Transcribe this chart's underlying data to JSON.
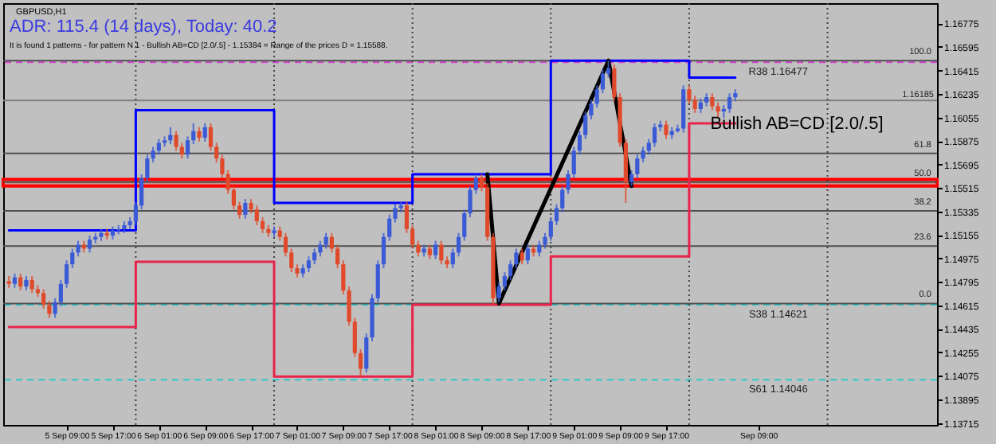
{
  "chart_data": {
    "type": "candlestick",
    "annotations": [
      "GBPUSD,H1",
      "ADR: 115.4 (14 days), Today: 40.2",
      "It is found 1 patterns - for pattern N 1 - Bullish AB=CD [2.0/.5] - 1.15384 = Range of the prices D = 1.15588.",
      "Bullish AB=CD [2.0/.5]",
      {
        "text": "100.0",
        "x": "--09-11T15:00",
        "y": 1.1649
      },
      {
        "text": "61.8",
        "x": "--09-11T15:00",
        "y": 1.1578
      },
      {
        "text": "50.0",
        "x": "--09-11T15:00",
        "y": 1.1556
      },
      {
        "text": "38.2",
        "x": "--09-11T15:00",
        "y": 1.1534
      },
      {
        "text": "23.6",
        "x": "--09-11T15:00",
        "y": 1.1507
      },
      {
        "text": "0.0",
        "x": "--09-11T15:00",
        "y": 1.1463
      }
    ],
    "x": [
      "--09-04T23:00",
      "--09-05T00:00",
      "--09-05T01:00",
      "--09-05T02:00",
      "--09-05T03:00",
      "--09-05T04:00",
      "--09-05T05:00",
      "--09-05T06:00",
      "--09-05T07:00",
      "--09-05T08:00",
      "--09-05T09:00",
      "--09-05T10:00",
      "--09-05T11:00",
      "--09-05T12:00",
      "--09-05T13:00",
      "--09-05T14:00",
      "--09-05T15:00",
      "--09-05T16:00",
      "--09-05T17:00",
      "--09-05T18:00",
      "--09-05T19:00",
      "--09-05T20:00",
      "--09-05T21:00",
      "--09-05T22:00",
      "--09-05T23:00",
      "--09-06T00:00",
      "--09-06T01:00",
      "--09-06T02:00",
      "--09-06T03:00",
      "--09-06T04:00",
      "--09-06T05:00",
      "--09-06T06:00",
      "--09-06T07:00",
      "--09-06T08:00",
      "--09-06T09:00",
      "--09-06T10:00",
      "--09-06T11:00",
      "--09-06T12:00",
      "--09-06T13:00",
      "--09-06T14:00",
      "--09-06T15:00",
      "--09-06T16:00",
      "--09-06T17:00",
      "--09-06T18:00",
      "--09-06T19:00",
      "--09-06T20:00",
      "--09-06T21:00",
      "--09-06T22:00",
      "--09-06T23:00",
      "--09-07T00:00",
      "--09-07T01:00",
      "--09-07T02:00",
      "--09-07T03:00",
      "--09-07T04:00",
      "--09-07T05:00",
      "--09-07T06:00",
      "--09-07T07:00",
      "--09-07T08:00",
      "--09-07T09:00",
      "--09-07T10:00",
      "--09-07T11:00",
      "--09-07T12:00",
      "--09-07T13:00",
      "--09-07T14:00",
      "--09-07T15:00",
      "--09-07T16:00",
      "--09-07T17:00",
      "--09-07T18:00",
      "--09-07T19:00",
      "--09-07T20:00",
      "--09-07T21:00",
      "--09-07T22:00",
      "--09-07T23:00",
      "--09-08T00:00",
      "--09-08T01:00",
      "--09-08T02:00",
      "--09-08T03:00",
      "--09-08T04:00",
      "--09-08T05:00",
      "--09-08T06:00",
      "--09-08T07:00",
      "--09-08T08:00",
      "--09-08T09:00",
      "--09-08T10:00",
      "--09-08T11:00",
      "--09-08T12:00",
      "--09-08T13:00",
      "--09-08T14:00",
      "--09-08T15:00",
      "--09-08T16:00",
      "--09-08T17:00",
      "--09-08T18:00",
      "--09-08T19:00",
      "--09-08T20:00",
      "--09-08T21:00",
      "--09-08T22:00",
      "--09-08T23:00",
      "--09-09T00:00",
      "--09-09T01:00",
      "--09-09T02:00",
      "--09-09T03:00",
      "--09-09T04:00",
      "--09-09T05:00",
      "--09-09T06:00",
      "--09-09T07:00",
      "--09-09T08:00",
      "--09-09T09:00",
      "--09-09T10:00",
      "--09-09T11:00",
      "--09-09T12:00",
      "--09-09T13:00",
      "--09-09T14:00",
      "--09-09T15:00",
      "--09-09T16:00",
      "--09-09T17:00",
      "--09-09T18:00",
      "--09-09T19:00",
      "--09-09T20:00",
      "--09-09T21:00",
      "--09-09T22:00",
      "--09-09T23:00",
      "--09-10T00:00",
      "--09-10T01:00",
      "--09-10T02:00",
      "--09-10T03:00",
      "--09-10T04:00",
      "--09-10T05:00"
    ],
    "ohlc": [
      [
        1.148,
        1.1484,
        1.1475,
        1.1478
      ],
      [
        1.1478,
        1.1486,
        1.1475,
        1.1483
      ],
      [
        1.1483,
        1.1486,
        1.1473,
        1.1476
      ],
      [
        1.1476,
        1.1484,
        1.1473,
        1.1481
      ],
      [
        1.1481,
        1.1484,
        1.1471,
        1.1474
      ],
      [
        1.1474,
        1.1477,
        1.1468,
        1.1471
      ],
      [
        1.1471,
        1.1474,
        1.1459,
        1.1462
      ],
      [
        1.1462,
        1.1465,
        1.1452,
        1.1455
      ],
      [
        1.1455,
        1.1467,
        1.1452,
        1.1464
      ],
      [
        1.1464,
        1.1481,
        1.1461,
        1.1478
      ],
      [
        1.1478,
        1.1496,
        1.1475,
        1.1493
      ],
      [
        1.1493,
        1.1505,
        1.149,
        1.1502
      ],
      [
        1.1502,
        1.1511,
        1.1499,
        1.1508
      ],
      [
        1.1508,
        1.1511,
        1.1502,
        1.1505
      ],
      [
        1.1505,
        1.1515,
        1.1502,
        1.1512
      ],
      [
        1.1512,
        1.1517,
        1.1509,
        1.1514
      ],
      [
        1.1514,
        1.152,
        1.1511,
        1.1517
      ],
      [
        1.1517,
        1.152,
        1.1512,
        1.1515
      ],
      [
        1.1515,
        1.1522,
        1.1512,
        1.1519
      ],
      [
        1.1519,
        1.1523,
        1.1516,
        1.152
      ],
      [
        1.152,
        1.1526,
        1.1517,
        1.1523
      ],
      [
        1.1523,
        1.1529,
        1.152,
        1.1526
      ],
      [
        1.1526,
        1.1541,
        1.1523,
        1.1538
      ],
      [
        1.1538,
        1.1562,
        1.1535,
        1.1559
      ],
      [
        1.1559,
        1.1577,
        1.1556,
        1.1574
      ],
      [
        1.1574,
        1.1583,
        1.1571,
        1.158
      ],
      [
        1.158,
        1.1589,
        1.1577,
        1.1586
      ],
      [
        1.1586,
        1.1591,
        1.1583,
        1.1588
      ],
      [
        1.1588,
        1.1598,
        1.1585,
        1.1592
      ],
      [
        1.1592,
        1.1595,
        1.158,
        1.1583
      ],
      [
        1.1583,
        1.1586,
        1.1574,
        1.1577
      ],
      [
        1.1577,
        1.1591,
        1.1574,
        1.1588
      ],
      [
        1.1588,
        1.1601,
        1.1585,
        1.1595
      ],
      [
        1.1595,
        1.1598,
        1.1587,
        1.159
      ],
      [
        1.159,
        1.1601,
        1.1587,
        1.1598
      ],
      [
        1.1598,
        1.1601,
        1.158,
        1.1583
      ],
      [
        1.1583,
        1.1586,
        1.1571,
        1.1574
      ],
      [
        1.1574,
        1.1577,
        1.1559,
        1.1562
      ],
      [
        1.1562,
        1.1565,
        1.1547,
        1.155
      ],
      [
        1.155,
        1.1553,
        1.1535,
        1.1538
      ],
      [
        1.1538,
        1.1541,
        1.1528,
        1.1531
      ],
      [
        1.1531,
        1.1543,
        1.1528,
        1.154
      ],
      [
        1.154,
        1.1543,
        1.1532,
        1.1535
      ],
      [
        1.1535,
        1.1538,
        1.1523,
        1.1526
      ],
      [
        1.1526,
        1.1529,
        1.1517,
        1.152
      ],
      [
        1.152,
        1.1523,
        1.1514,
        1.1517
      ],
      [
        1.1517,
        1.1522,
        1.1514,
        1.1519
      ],
      [
        1.1519,
        1.1522,
        1.1511,
        1.1514
      ],
      [
        1.1514,
        1.1517,
        1.1499,
        1.1502
      ],
      [
        1.1502,
        1.1505,
        1.1487,
        1.149
      ],
      [
        1.149,
        1.1493,
        1.1483,
        1.1486
      ],
      [
        1.1486,
        1.1493,
        1.1483,
        1.149
      ],
      [
        1.149,
        1.1499,
        1.1487,
        1.1496
      ],
      [
        1.1496,
        1.1505,
        1.1493,
        1.1502
      ],
      [
        1.1502,
        1.1511,
        1.1499,
        1.1508
      ],
      [
        1.1508,
        1.1517,
        1.1505,
        1.1514
      ],
      [
        1.1514,
        1.1517,
        1.1502,
        1.1505
      ],
      [
        1.1505,
        1.1508,
        1.149,
        1.1493
      ],
      [
        1.1493,
        1.1496,
        1.147,
        1.1473
      ],
      [
        1.1473,
        1.1476,
        1.1446,
        1.1449
      ],
      [
        1.1449,
        1.1452,
        1.1422,
        1.1425
      ],
      [
        1.1425,
        1.1428,
        1.1407,
        1.1413
      ],
      [
        1.1413,
        1.144,
        1.141,
        1.1437
      ],
      [
        1.1437,
        1.147,
        1.1434,
        1.1467
      ],
      [
        1.1467,
        1.1496,
        1.1464,
        1.1493
      ],
      [
        1.1493,
        1.1517,
        1.149,
        1.1514
      ],
      [
        1.1514,
        1.1531,
        1.1511,
        1.1528
      ],
      [
        1.1528,
        1.1539,
        1.1525,
        1.1536
      ],
      [
        1.1536,
        1.1541,
        1.1533,
        1.1538
      ],
      [
        1.1538,
        1.1541,
        1.1517,
        1.152
      ],
      [
        1.152,
        1.1523,
        1.1505,
        1.1508
      ],
      [
        1.1508,
        1.1511,
        1.1499,
        1.1502
      ],
      [
        1.1502,
        1.1508,
        1.1499,
        1.1505
      ],
      [
        1.1505,
        1.1508,
        1.1497,
        1.15
      ],
      [
        1.15,
        1.1511,
        1.1497,
        1.1508
      ],
      [
        1.1508,
        1.1511,
        1.1493,
        1.1496
      ],
      [
        1.1496,
        1.1499,
        1.149,
        1.1493
      ],
      [
        1.1493,
        1.1505,
        1.149,
        1.1502
      ],
      [
        1.1502,
        1.1517,
        1.1499,
        1.1514
      ],
      [
        1.1514,
        1.1535,
        1.1511,
        1.1532
      ],
      [
        1.1532,
        1.1553,
        1.1529,
        1.155
      ],
      [
        1.155,
        1.1562,
        1.1547,
        1.1559
      ],
      [
        1.1559,
        1.1562,
        1.1549,
        1.1552
      ],
      [
        1.1552,
        1.1555,
        1.1511,
        1.1514
      ],
      [
        1.1514,
        1.1517,
        1.1462,
        1.1467
      ],
      [
        1.1467,
        1.1479,
        1.1464,
        1.1476
      ],
      [
        1.1476,
        1.1487,
        1.1473,
        1.1484
      ],
      [
        1.1484,
        1.1496,
        1.1481,
        1.1493
      ],
      [
        1.1493,
        1.1505,
        1.149,
        1.1502
      ],
      [
        1.1502,
        1.1505,
        1.1493,
        1.1496
      ],
      [
        1.1496,
        1.1508,
        1.1493,
        1.1505
      ],
      [
        1.1505,
        1.1508,
        1.1499,
        1.1502
      ],
      [
        1.1502,
        1.1511,
        1.1499,
        1.1508
      ],
      [
        1.1508,
        1.1517,
        1.1505,
        1.1514
      ],
      [
        1.1514,
        1.1529,
        1.1511,
        1.1526
      ],
      [
        1.1526,
        1.1539,
        1.1523,
        1.1536
      ],
      [
        1.1536,
        1.1553,
        1.1533,
        1.155
      ],
      [
        1.155,
        1.1565,
        1.1547,
        1.1562
      ],
      [
        1.1562,
        1.1583,
        1.1559,
        1.158
      ],
      [
        1.158,
        1.1595,
        1.1577,
        1.1592
      ],
      [
        1.1592,
        1.161,
        1.1589,
        1.1607
      ],
      [
        1.1607,
        1.1619,
        1.1604,
        1.1616
      ],
      [
        1.1616,
        1.163,
        1.1613,
        1.1627
      ],
      [
        1.1627,
        1.1642,
        1.1624,
        1.1639
      ],
      [
        1.1639,
        1.1649,
        1.1636,
        1.1643
      ],
      [
        1.1643,
        1.1646,
        1.1618,
        1.1621
      ],
      [
        1.1621,
        1.1624,
        1.1583,
        1.1586
      ],
      [
        1.1586,
        1.1589,
        1.154,
        1.1556
      ],
      [
        1.1556,
        1.1565,
        1.1553,
        1.1562
      ],
      [
        1.1562,
        1.1577,
        1.1559,
        1.1574
      ],
      [
        1.1574,
        1.1583,
        1.1571,
        1.158
      ],
      [
        1.158,
        1.1589,
        1.1577,
        1.1586
      ],
      [
        1.1586,
        1.1601,
        1.1583,
        1.1598
      ],
      [
        1.1598,
        1.1603,
        1.1595,
        1.16
      ],
      [
        1.16,
        1.1603,
        1.1589,
        1.1592
      ],
      [
        1.1592,
        1.1598,
        1.1589,
        1.1595
      ],
      [
        1.1595,
        1.16,
        1.1594,
        1.1597
      ],
      [
        1.1597,
        1.163,
        1.1594,
        1.1627
      ],
      [
        1.1627,
        1.163,
        1.1616,
        1.1619
      ],
      [
        1.1619,
        1.1622,
        1.1609,
        1.1612
      ],
      [
        1.1612,
        1.162,
        1.1609,
        1.1617
      ],
      [
        1.1617,
        1.1624,
        1.1614,
        1.1621
      ],
      [
        1.1621,
        1.1624,
        1.1611,
        1.1614
      ],
      [
        1.1614,
        1.1617,
        1.1605,
        1.161
      ],
      [
        1.161,
        1.1615,
        1.1605,
        1.1612
      ],
      [
        1.1612,
        1.1624,
        1.1609,
        1.1621
      ],
      [
        1.1621,
        1.1627,
        1.1618,
        1.1624
      ]
    ],
    "series": [
      {
        "type": "step",
        "color": "#0000ff",
        "x": [
          "--09-04T23:00",
          "--09-05T21:00",
          "--09-06T21:00",
          "--09-07T21:00",
          "--09-08T21:00",
          "--09-09T21:00",
          "--09-10T05:00"
        ],
        "values": [
          1.1519,
          1.1611,
          1.154,
          1.1562,
          1.1649,
          1.1636,
          1.1636
        ]
      },
      {
        "type": "step",
        "color": "#e8244a",
        "x": [
          "--09-04T23:00",
          "--09-05T21:00",
          "--09-06T21:00",
          "--09-07T21:00",
          "--09-08T21:00",
          "--09-09T21:00",
          "--09-10T05:00"
        ],
        "values": [
          1.1445,
          1.1495,
          1.1407,
          1.1462,
          1.1499,
          1.1601,
          1.1601
        ]
      },
      {
        "type": "line",
        "color": "#000000",
        "x": [
          "--09-08T10:00",
          "--09-08T12:00",
          "--09-09T07:00",
          "--09-09T11:00"
        ],
        "values": [
          1.1562,
          1.1463,
          1.1649,
          1.1553
        ]
      }
    ],
    "ref_lines": [
      {
        "axis": "y",
        "value": 1.16185,
        "label": "1.16185",
        "color": "#808080"
      },
      {
        "axis": "y",
        "value": 1.16477,
        "label": "R38 1.16477",
        "color": "#d040d0",
        "line_style": "dashed"
      },
      {
        "axis": "y",
        "value": 1.14621,
        "label": "S38 1.14621",
        "color": "#30c8c8",
        "line_style": "dashed"
      },
      {
        "axis": "y",
        "value": 1.14046,
        "label": "S61 1.14046",
        "color": "#30c8c8",
        "line_style": "dashed"
      },
      {
        "axis": "y",
        "value": 1.1649,
        "label": null,
        "color": "#505050"
      },
      {
        "axis": "y",
        "value": 1.1578,
        "label": null,
        "color": "#505050"
      },
      {
        "axis": "y",
        "value": 1.1556,
        "label": null,
        "color": "#505050"
      },
      {
        "axis": "y",
        "value": 1.1534,
        "label": null,
        "color": "#505050"
      },
      {
        "axis": "y",
        "value": 1.1507,
        "label": null,
        "color": "#505050"
      },
      {
        "axis": "y",
        "value": 1.1463,
        "label": null,
        "color": "#505050"
      },
      {
        "axis": "x",
        "value": "--09-05T21:00",
        "label": null,
        "color": "#404040",
        "line_style": "dotted"
      },
      {
        "axis": "x",
        "value": "--09-06T21:00",
        "label": null,
        "color": "#404040",
        "line_style": "dotted"
      },
      {
        "axis": "x",
        "value": "--09-07T21:00",
        "label": null,
        "color": "#404040",
        "line_style": "dotted"
      },
      {
        "axis": "x",
        "value": "--09-08T21:00",
        "label": null,
        "color": "#404040",
        "line_style": "dotted"
      },
      {
        "axis": "x",
        "value": "--09-09T21:00",
        "label": null,
        "color": "#404040",
        "line_style": "dotted"
      },
      {
        "axis": "x",
        "value": "--09-10T21:00",
        "label": null,
        "color": "#404040",
        "line_style": "dotted"
      }
    ],
    "bands": [
      {
        "axis": "y",
        "from": 1.1553,
        "to": 1.1558,
        "label": null,
        "color": "#ff0000"
      }
    ],
    "xlim": [
      "--09-04T22:00",
      "--09-11T16:00"
    ],
    "xticks": [
      {
        "value": "--09-05T09:00",
        "label": "5 Sep 09:00"
      },
      {
        "value": "--09-05T17:00",
        "label": "5 Sep 17:00"
      },
      {
        "value": "--09-06T01:00",
        "label": "6 Sep 01:00"
      },
      {
        "value": "--09-06T09:00",
        "label": "6 Sep 09:00"
      },
      {
        "value": "--09-06T17:00",
        "label": "6 Sep 17:00"
      },
      {
        "value": "--09-07T01:00",
        "label": "7 Sep 01:00"
      },
      {
        "value": "--09-07T09:00",
        "label": "7 Sep 09:00"
      },
      {
        "value": "--09-07T17:00",
        "label": "7 Sep 17:00"
      },
      {
        "value": "--09-08T01:00",
        "label": "8 Sep 01:00"
      },
      {
        "value": "--09-08T09:00",
        "label": "8 Sep 09:00"
      },
      {
        "value": "--09-08T17:00",
        "label": "8 Sep 17:00"
      },
      {
        "value": "--09-09T01:00",
        "label": "9 Sep 01:00"
      },
      {
        "value": "--09-09T09:00",
        "label": "9 Sep 09:00"
      },
      {
        "value": "--09-09T17:00",
        "label": "9 Sep 17:00"
      },
      {
        "value": "--09-10T09:00",
        "label": "Sep 09:00"
      }
    ],
    "ylim": [
      1.137,
      1.1693
    ],
    "yticks": [
      1.13715,
      1.13895,
      1.14075,
      1.14255,
      1.14435,
      1.14615,
      1.14795,
      1.14975,
      1.15155,
      1.15335,
      1.15515,
      1.15695,
      1.15875,
      1.16055,
      1.16235,
      1.16415,
      1.16595,
      1.16775
    ]
  }
}
